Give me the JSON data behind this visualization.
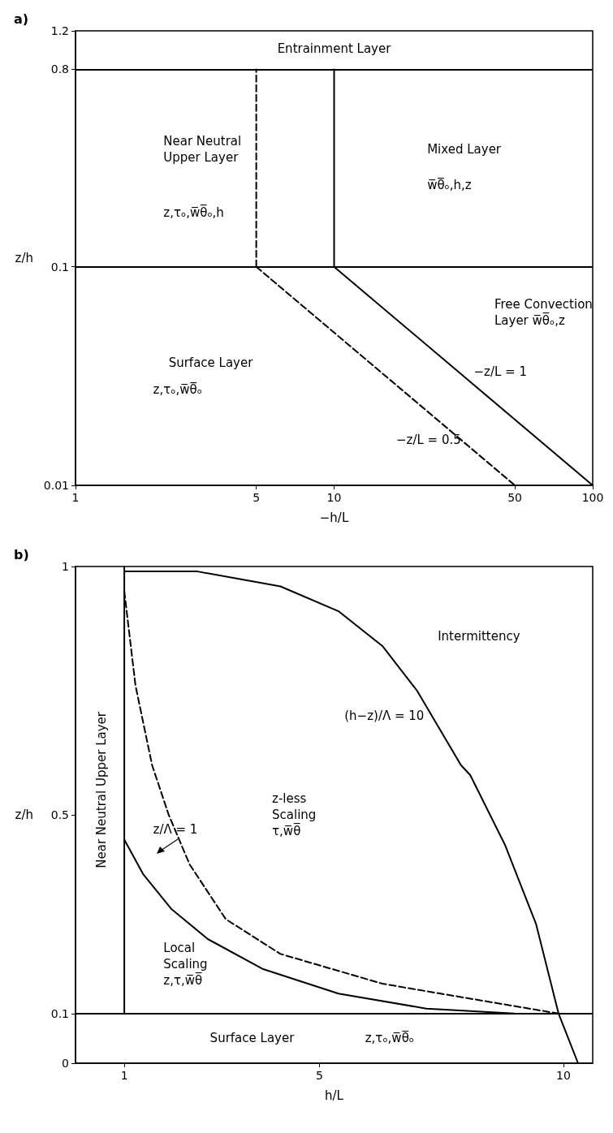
{
  "chart_data": [
    {
      "type": "line",
      "title": "a)",
      "xlabel": "−h/L",
      "ylabel": "z/h",
      "log": "xy",
      "xlim": [
        1,
        100
      ],
      "xticks": [
        1,
        5,
        10,
        50,
        100
      ],
      "ylim": [
        0.01,
        1.2
      ],
      "yticks": [
        0.01,
        0.1,
        0.8,
        1.2
      ],
      "series": [
        {
          "color": "#000000",
          "line_style": "dashed",
          "x": [
            5,
            50
          ],
          "values": [
            0.1,
            0.01
          ]
        },
        {
          "color": "#000000",
          "line_style": "solid",
          "x": [
            10,
            100
          ],
          "values": [
            0.1,
            0.01
          ]
        },
        {
          "color": "#000000",
          "line_style": "dashed",
          "x": [
            5,
            5
          ],
          "values": [
            0.1,
            0.8
          ]
        },
        {
          "color": "#000000",
          "line_style": "solid",
          "x": [
            10,
            10
          ],
          "values": [
            0.1,
            0.8
          ]
        }
      ],
      "ref_lines": [
        {
          "axis": "y",
          "value": 0.1,
          "color": "#000000"
        },
        {
          "axis": "y",
          "value": 0.8,
          "color": "#000000"
        }
      ],
      "annotations": [
        "Entrainment Layer",
        "Near Neutral\nUpper Layer",
        "z,τₒ,w̅θ̅ₒ,h",
        "Mixed Layer",
        "w̅θ̅ₒ,h,z",
        "Free Convection\nLayer w̅θ̅ₒ,z",
        "Surface Layer",
        "z,τₒ,w̅θ̅ₒ",
        "−z/L = 1",
        "−z/L = 0.5"
      ]
    },
    {
      "type": "line",
      "title": "b)",
      "xlabel": "h/L",
      "ylabel": "z/h",
      "xlim": [
        0,
        10.6
      ],
      "xticks": [
        1,
        5,
        10
      ],
      "ylim": [
        0,
        1
      ],
      "yticks": [
        0,
        0.1,
        0.5,
        1
      ],
      "series": [
        {
          "color": "#000000",
          "line_style": "solid",
          "x": [
            1,
            2.5,
            4.2,
            5.39,
            6.29,
            7.0,
            7.9,
            8.09,
            8.8,
            9.44,
            9.9,
            10.3
          ],
          "values": [
            0.99,
            0.99,
            0.96,
            0.91,
            0.84,
            0.75,
            0.6,
            0.58,
            0.44,
            0.28,
            0.1,
            0
          ]
        },
        {
          "color": "#000000",
          "line_style": "dashed",
          "x": [
            1,
            1.23,
            1.57,
            1.91,
            2.34,
            3.08,
            4.2,
            6.29,
            8.09,
            9.9
          ],
          "values": [
            0.95,
            0.76,
            0.6,
            0.5,
            0.4,
            0.29,
            0.22,
            0.16,
            0.13,
            0.1
          ]
        },
        {
          "color": "#000000",
          "line_style": "solid",
          "x": [
            1,
            1.39,
            1.97,
            2.71,
            3.83,
            5.39,
            7.19,
            8.99
          ],
          "values": [
            0.45,
            0.38,
            0.31,
            0.25,
            0.19,
            0.14,
            0.11,
            0.1
          ]
        },
        {
          "color": "#000000",
          "line_style": "solid",
          "x": [
            1,
            1,
            1
          ],
          "values": [
            0.1,
            0.5,
            1
          ]
        }
      ],
      "ref_lines": [
        {
          "axis": "y",
          "value": 0.1,
          "color": "#000000"
        }
      ],
      "annotations": [
        "Intermittency",
        "(h−z)/Λ = 10",
        "z-less\nScaling\nτ,w̅θ̅",
        "z/Λ = 1",
        "Local\nScaling\nz,τ,w̅θ̅",
        "Surface Layer",
        "z,τₒ,w̅θ̅ₒ",
        "Near Neutral Upper Layer"
      ]
    }
  ]
}
